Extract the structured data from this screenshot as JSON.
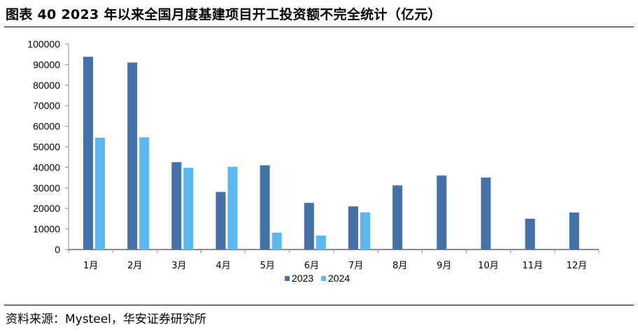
{
  "title": "图表 40 2023 年以来全国月度基建项目开工投资额不完全统计（亿元）",
  "source": "资料来源：Mysteel，华安证券研究所",
  "colors": {
    "s2023": "#4472A8",
    "s2024": "#5BB8F0",
    "axis": "#8C8C8C"
  },
  "chart_data": {
    "type": "bar",
    "title": "图表 40 2023 年以来全国月度基建项目开工投资额不完全统计（亿元）",
    "xlabel": "",
    "ylabel": "",
    "ylim": [
      0,
      100000
    ],
    "yticks": [
      0,
      10000,
      20000,
      30000,
      40000,
      50000,
      60000,
      70000,
      80000,
      90000,
      100000
    ],
    "categories": [
      "1月",
      "2月",
      "3月",
      "4月",
      "5月",
      "6月",
      "7月",
      "8月",
      "9月",
      "10月",
      "11月",
      "12月"
    ],
    "series": [
      {
        "name": "2023",
        "values": [
          93800,
          91000,
          42500,
          28000,
          41000,
          22700,
          21000,
          31200,
          36000,
          35000,
          15000,
          18000
        ]
      },
      {
        "name": "2024",
        "values": [
          54400,
          54600,
          39800,
          40300,
          8200,
          6800,
          18100,
          null,
          null,
          null,
          null,
          null
        ]
      }
    ],
    "legend": "bottom",
    "grid": false
  }
}
